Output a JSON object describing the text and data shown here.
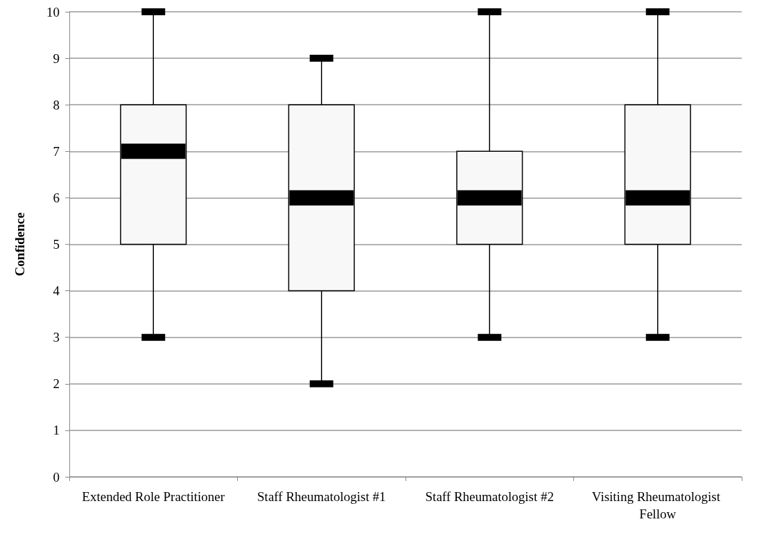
{
  "chart_data": {
    "type": "box",
    "ylabel": "Confidence",
    "categories": [
      "Extended Role Practitioner",
      "Staff Rheumatologist #1",
      "Staff Rheumatologist #2",
      "Visiting Rheumatologist Fellow"
    ],
    "series": [
      {
        "color": "#f8f8f8",
        "boxes": [
          {
            "low": 3,
            "q1": 5,
            "median": 7,
            "q3": 8,
            "high": 10
          },
          {
            "low": 2,
            "q1": 4,
            "median": 6,
            "q3": 8,
            "high": 9
          },
          {
            "low": 3,
            "q1": 5,
            "median": 6,
            "q3": 7,
            "high": 10
          },
          {
            "low": 3,
            "q1": 5,
            "median": 6,
            "q3": 8,
            "high": 10
          }
        ]
      }
    ],
    "ylim": [
      0,
      10
    ],
    "yticks": [
      0,
      1,
      2,
      3,
      4,
      5,
      6,
      7,
      8,
      9,
      10
    ],
    "grid": "y"
  }
}
